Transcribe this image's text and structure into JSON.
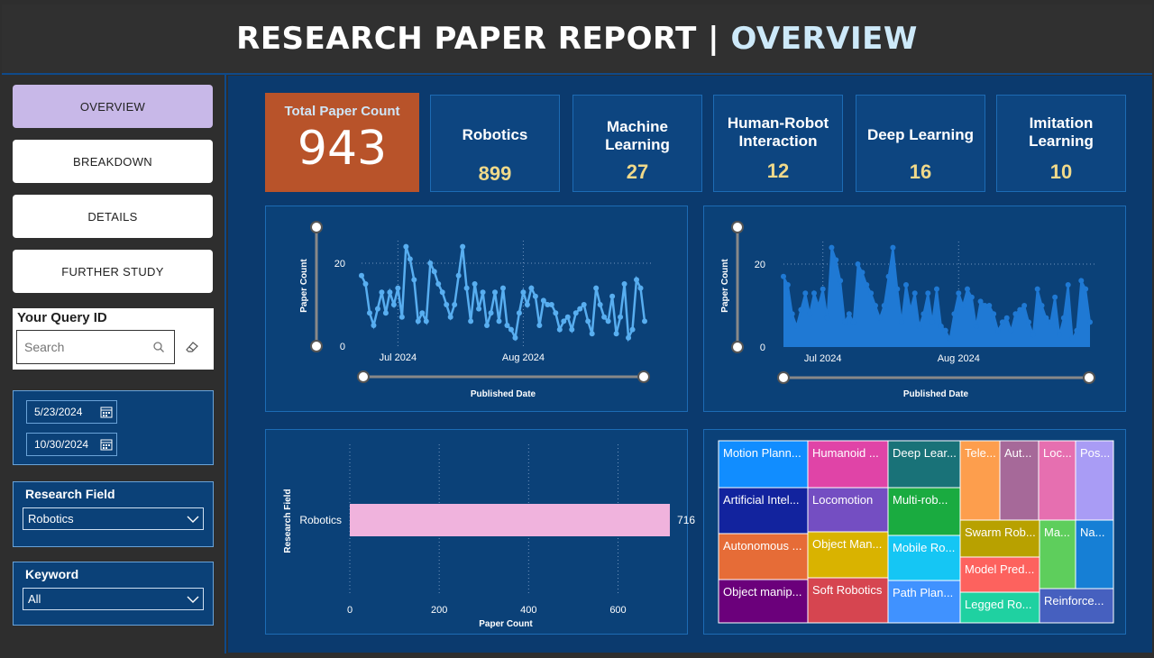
{
  "header": {
    "title_main": "RESEARCH PAPER REPORT | ",
    "title_accent": "OVERVIEW"
  },
  "nav": {
    "overview": "OVERVIEW",
    "breakdown": "BREAKDOWN",
    "details": "DETAILS",
    "further_study": "FURTHER STUDY"
  },
  "query": {
    "title": "Your Query ID",
    "placeholder": "Search"
  },
  "date_range": {
    "start": "5/23/2024",
    "end": "10/30/2024"
  },
  "research_field_slicer": {
    "title": "Research Field",
    "selected": "Robotics"
  },
  "keyword_slicer": {
    "title": "Keyword",
    "selected": "All"
  },
  "kpis": {
    "total": {
      "label": "Total Paper Count",
      "value": "943"
    },
    "cards": [
      {
        "label": "Robotics",
        "value": "899"
      },
      {
        "label": "Machine Learning",
        "value": "27"
      },
      {
        "label": "Human-Robot Interaction",
        "value": "12"
      },
      {
        "label": "Deep Learning",
        "value": "16"
      },
      {
        "label": "Imitation Learning",
        "value": "10"
      }
    ]
  },
  "colors": {
    "accent_blue": "#cde9f9",
    "line_series": "#58aef0",
    "area_series": "#1f79d4",
    "bar": "#f0b3dd",
    "kpi_total_bg": "#b8532a",
    "kpi_value": "#f0d98a"
  },
  "chart_data": [
    {
      "type": "line",
      "xlabel": "Published Date",
      "ylabel": "Paper Count",
      "x_ticks": [
        "Jul 2024",
        "Aug 2024"
      ],
      "y_ticks": [
        "0",
        "20"
      ],
      "ylim": [
        0,
        25
      ],
      "grid": true,
      "series": [
        {
          "values": [
            17,
            15,
            8,
            5,
            9,
            13,
            8,
            13,
            10,
            14,
            7,
            24,
            21,
            16,
            6,
            8,
            6,
            20,
            18,
            15,
            13,
            10,
            7,
            10,
            17,
            24,
            14,
            6,
            15,
            9,
            13,
            5,
            8,
            13,
            6,
            14,
            5,
            4,
            2,
            8,
            13,
            10,
            14,
            12,
            5,
            11,
            10,
            10,
            8,
            4,
            6,
            7,
            4,
            8,
            9,
            10,
            6,
            3,
            14,
            10,
            7,
            6,
            12,
            3,
            7,
            15,
            2,
            4,
            16,
            14,
            6
          ]
        }
      ]
    },
    {
      "type": "area",
      "xlabel": "Published Date",
      "ylabel": "Paper Count",
      "x_ticks": [
        "Jul 2024",
        "Aug 2024"
      ],
      "y_ticks": [
        "0",
        "20"
      ],
      "ylim": [
        0,
        25
      ],
      "grid": true,
      "series": [
        {
          "values": [
            17,
            15,
            8,
            5,
            9,
            13,
            8,
            13,
            10,
            14,
            7,
            24,
            21,
            16,
            6,
            8,
            6,
            20,
            18,
            15,
            13,
            10,
            7,
            10,
            17,
            24,
            14,
            6,
            15,
            9,
            13,
            5,
            8,
            13,
            6,
            14,
            5,
            4,
            2,
            8,
            13,
            10,
            14,
            12,
            5,
            11,
            10,
            10,
            8,
            4,
            6,
            7,
            4,
            8,
            9,
            10,
            6,
            3,
            14,
            10,
            7,
            6,
            12,
            3,
            7,
            15,
            2,
            4,
            16,
            14,
            6
          ]
        }
      ]
    },
    {
      "type": "bar",
      "orientation": "horizontal",
      "ylabel": "Research Field",
      "xlabel": "Paper Count",
      "categories": [
        "Robotics"
      ],
      "values": [
        716
      ],
      "data_labels": [
        "716"
      ],
      "x_ticks": [
        "0",
        "200",
        "400",
        "600"
      ],
      "xlim": [
        0,
        720
      ],
      "grid": true
    }
  ],
  "treemap": {
    "tiles": [
      {
        "label": "Motion Plann...",
        "color": "#118dff"
      },
      {
        "label": "Humanoid ...",
        "color": "#e044a7"
      },
      {
        "label": "Deep Lear...",
        "color": "#197278"
      },
      {
        "label": "Tele...",
        "color": "#fd9e4d"
      },
      {
        "label": "Aut...",
        "color": "#a66999"
      },
      {
        "label": "Loc...",
        "color": "#e66fb0"
      },
      {
        "label": "Pos...",
        "color": "#a99cf5"
      },
      {
        "label": "Artificial Intel...",
        "color": "#12239e"
      },
      {
        "label": "Locomotion",
        "color": "#744ec2"
      },
      {
        "label": "Multi-rob...",
        "color": "#1aab40"
      },
      {
        "label": "Swarm Rob...",
        "color": "#b8a100"
      },
      {
        "label": "Ma...",
        "color": "#5ece5c"
      },
      {
        "label": "Na...",
        "color": "#167fd5"
      },
      {
        "label": "Autonomous ...",
        "color": "#e66c37"
      },
      {
        "label": "Object Man...",
        "color": "#d9b300"
      },
      {
        "label": "Mobile Ro...",
        "color": "#15c6f4"
      },
      {
        "label": "Model Pred...",
        "color": "#fd625e"
      },
      {
        "label": "Object manip...",
        "color": "#6b007b"
      },
      {
        "label": "Soft Robotics",
        "color": "#d64550"
      },
      {
        "label": "Path Plan...",
        "color": "#4092ff"
      },
      {
        "label": "Legged Ro...",
        "color": "#1fd1a1"
      },
      {
        "label": "Reinforce...",
        "color": "#4660bf"
      }
    ]
  }
}
